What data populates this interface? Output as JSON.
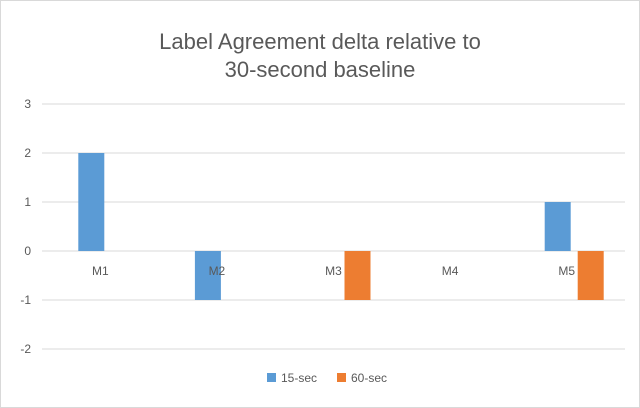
{
  "chart_data": {
    "type": "bar",
    "title_lines": [
      "Label Agreement delta relative to",
      "30-second baseline"
    ],
    "categories": [
      "M1",
      "M2",
      "M3",
      "M4",
      "M5"
    ],
    "series": [
      {
        "name": "15-sec",
        "color": "#5b9bd5",
        "values": [
          2,
          -1,
          0,
          0,
          1
        ]
      },
      {
        "name": "60-sec",
        "color": "#ed7d31",
        "values": [
          0,
          0,
          -1,
          0,
          -1
        ]
      }
    ],
    "ylim": [
      -2,
      3
    ],
    "yticks": [
      3,
      2,
      1,
      0,
      -1,
      -2
    ],
    "grid": true,
    "legend_position": "bottom"
  }
}
